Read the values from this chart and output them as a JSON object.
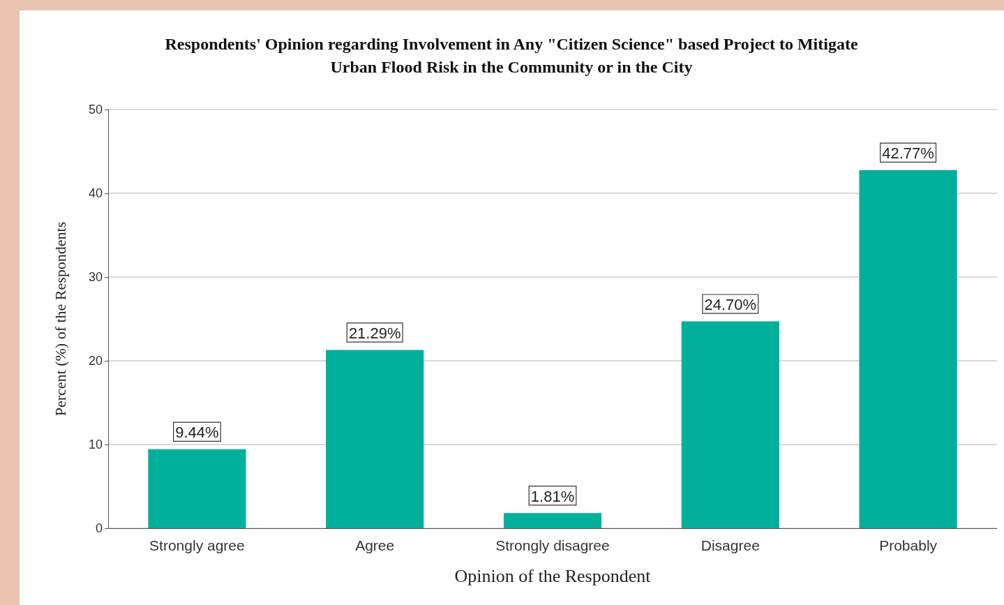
{
  "chart_data": {
    "type": "bar",
    "title": "Respondents' Opinion regarding Involvement in Any \"Citizen Science\" based Project to Mitigate\nUrban Flood Risk in the Community or in the City",
    "xlabel": "Opinion of the Respondent",
    "ylabel": "Percent (%) of the Respondents",
    "categories": [
      "Strongly agree",
      "Agree",
      "Strongly disagree",
      "Disagree",
      "Probably"
    ],
    "values": [
      9.44,
      21.29,
      1.81,
      24.7,
      42.77
    ],
    "value_labels": [
      "9.44%",
      "21.29%",
      "1.81%",
      "24.70%",
      "42.77%"
    ],
    "color": "#00b09b",
    "ylim": [
      0,
      50
    ],
    "yticks": [
      0,
      10,
      20,
      30,
      40,
      50
    ],
    "grid": "y"
  }
}
